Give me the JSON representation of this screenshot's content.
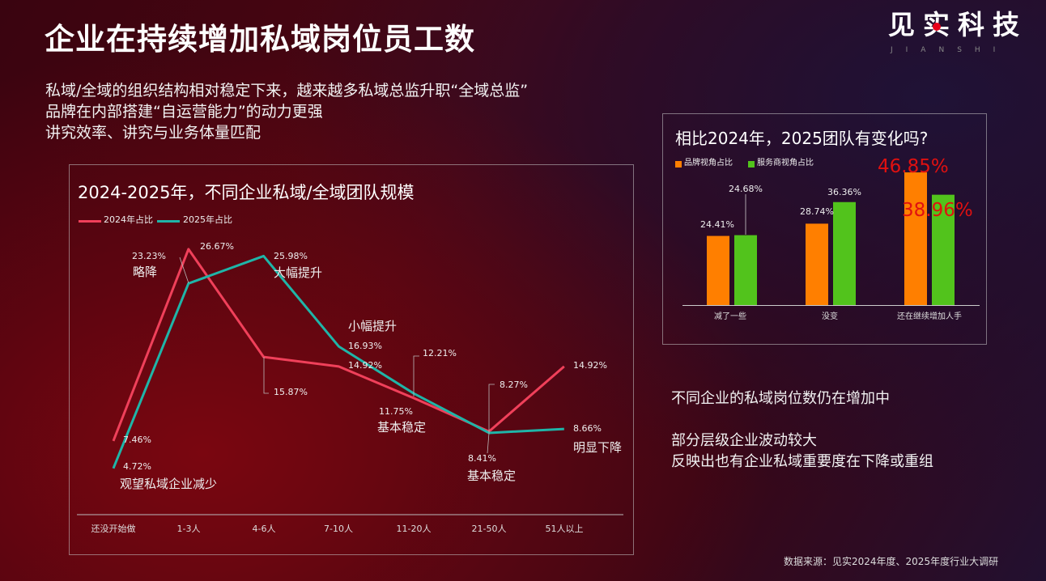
{
  "header": {
    "title": "企业在持续增加私域岗位员工数",
    "bullets": [
      "私域/全域的组织结构相对稳定下来，越来越多私域总监升职“全域总监”",
      "品牌在内部搭建“自运营能力”的动力更强",
      "讲究效率、讲究与业务体量匹配"
    ]
  },
  "logo": {
    "cn": "见实科技",
    "en": "JIANSHI",
    "dot_color": "#e8001a"
  },
  "right_notes": [
    "不同企业的私域岗位数仍在增加中",
    "部分层级企业波动较大",
    "反映出也有企业私域重要度在下降或重组"
  ],
  "source": "数据来源：见实2024年度、2025年度行业大调研",
  "chart_data": [
    {
      "type": "line",
      "title": "2024-2025年，不同企业私域/全域团队规模",
      "categories": [
        "还没开始做",
        "1-3人",
        "4-6人",
        "7-10人",
        "11-20人",
        "21-50人",
        "51人以上"
      ],
      "series": [
        {
          "name": "2024年占比",
          "color": "#f0405a",
          "values": [
            7.46,
            26.67,
            15.87,
            14.92,
            11.75,
            8.41,
            14.92
          ],
          "labels": [
            "7.46%",
            "26.67%",
            "15.87%",
            "14.92%",
            "11.75%",
            "8.41%",
            "14.92%"
          ]
        },
        {
          "name": "2025年占比",
          "color": "#1fb5a8",
          "values": [
            4.72,
            23.23,
            25.98,
            16.93,
            12.21,
            8.27,
            8.66
          ],
          "labels": [
            "4.72%",
            "23.23%",
            "25.98%",
            "16.93%",
            "12.21%",
            "8.27%",
            "8.66%"
          ]
        }
      ],
      "annotations": [
        "观望私域企业减少",
        "略降",
        "大幅提升",
        "小幅提升",
        "基本稳定",
        "基本稳定",
        "明显下降"
      ],
      "grid": false,
      "legend": "top-left"
    },
    {
      "type": "bar",
      "title": "相比2024年，2025团队有变化吗?",
      "categories": [
        "减了一些",
        "没变",
        "还在继续增加人手"
      ],
      "series": [
        {
          "name": "品牌视角占比",
          "color": "#ff7f00",
          "values": [
            24.41,
            28.74,
            46.85
          ],
          "labels": [
            "24.41%",
            "28.74%",
            "46.85%"
          ]
        },
        {
          "name": "服务商视角占比",
          "color": "#52c31c",
          "values": [
            24.68,
            36.36,
            38.96
          ],
          "labels": [
            "24.68%",
            "36.36%",
            "38.96%"
          ]
        }
      ],
      "highlight_color": "#e01010",
      "grid": false,
      "legend": "top-left"
    }
  ]
}
